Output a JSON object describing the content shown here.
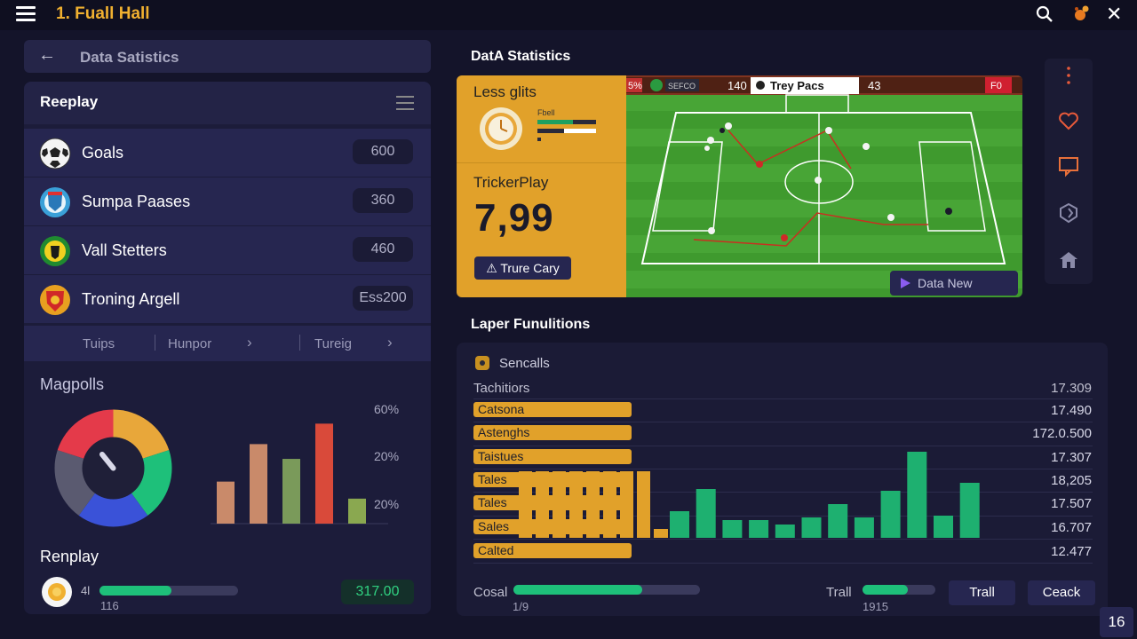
{
  "app": {
    "title": "1. Fuall Hall"
  },
  "left_panel": {
    "back_label": "Data Satistics",
    "header_title": "Reeplay",
    "stats": [
      {
        "label": "Goals",
        "value": "600",
        "logo": "soccer-ball-icon"
      },
      {
        "label": "Sumpa Paases",
        "value": "360",
        "logo": "club-crest-blue-icon"
      },
      {
        "label": "Vall Stetters",
        "value": "460",
        "logo": "club-crest-green-icon"
      },
      {
        "label": "Troning Argell",
        "value": "Ess200",
        "logo": "club-crest-red-icon"
      }
    ],
    "tabs": [
      "Tuips",
      "Hunpor",
      "Tureig"
    ],
    "magpolls_title": "Magpolls",
    "bar_axis_labels": [
      "60%",
      "20%",
      "20%"
    ],
    "bar_values": [
      0.37,
      0.7,
      0.57,
      0.88,
      0.22
    ],
    "bar_colors": [
      "#c98a6a",
      "#c98a6a",
      "#7a9a5a",
      "#d94a3a",
      "#8aa850"
    ],
    "gauge_colors": [
      "#e8a73a",
      "#1ec07a",
      "#3a52d8",
      "#5a5a70",
      "#e43a4a"
    ],
    "replay2_title": "Renplay",
    "replay2_small": "4l",
    "replay2_sub": "116",
    "replay2_progress": 0.52,
    "replay2_value": "317.00"
  },
  "hero": {
    "section_title": "DatA Statistics",
    "less_glits": "Less glits",
    "mini_label": "Fbell",
    "tricker_label": "TrickerPlay",
    "big_number": "7,99",
    "button_label": "Trure Cary",
    "field_scoreboard": {
      "left_pct": "5%",
      "left_pill": "SEFCO",
      "left_score": "140",
      "team_label": "Trey Pacs",
      "right_score": "43",
      "right_badge": "F0"
    },
    "data_new_label": "Data New"
  },
  "side_icons": [
    "more-vertical-icon",
    "heart-icon",
    "comment-icon",
    "shield-icon",
    "home-icon"
  ],
  "lower": {
    "section_title": "Laper Funulitions",
    "sencalls_label": "Sencalls",
    "header_label": "Tachitiors",
    "header_value": "17.309",
    "rows": [
      {
        "label": "Catsona",
        "value": "17.490"
      },
      {
        "label": "Astenghs",
        "value": "172.0.500"
      },
      {
        "label": "Taistues",
        "value": "17.307"
      },
      {
        "label": "Tales",
        "value": "18,205"
      },
      {
        "label": "Tales",
        "value": "17.507"
      },
      {
        "label": "Sales",
        "value": "16.707"
      },
      {
        "label": "Calted",
        "value": "12.477"
      }
    ],
    "chart_yellow": [
      0.75,
      0.75,
      0.75,
      0.75,
      0.75,
      0.75,
      0.75,
      0.75,
      0.1
    ],
    "chart_green": [
      0.3,
      0.55,
      0.2,
      0.2,
      0.15,
      0.23,
      0.38,
      0.23,
      0.53,
      0.97,
      0.25,
      0.62
    ]
  },
  "footer": {
    "cosal_label": "Cosal",
    "cosal_sub": "1/9",
    "cosal_progress": 0.69,
    "trall_label": "Trall",
    "trall_sub": "1915",
    "trall_progress": 0.62,
    "btn_trall": "Trall",
    "btn_ceack": "Ceack",
    "page_number": "16"
  }
}
